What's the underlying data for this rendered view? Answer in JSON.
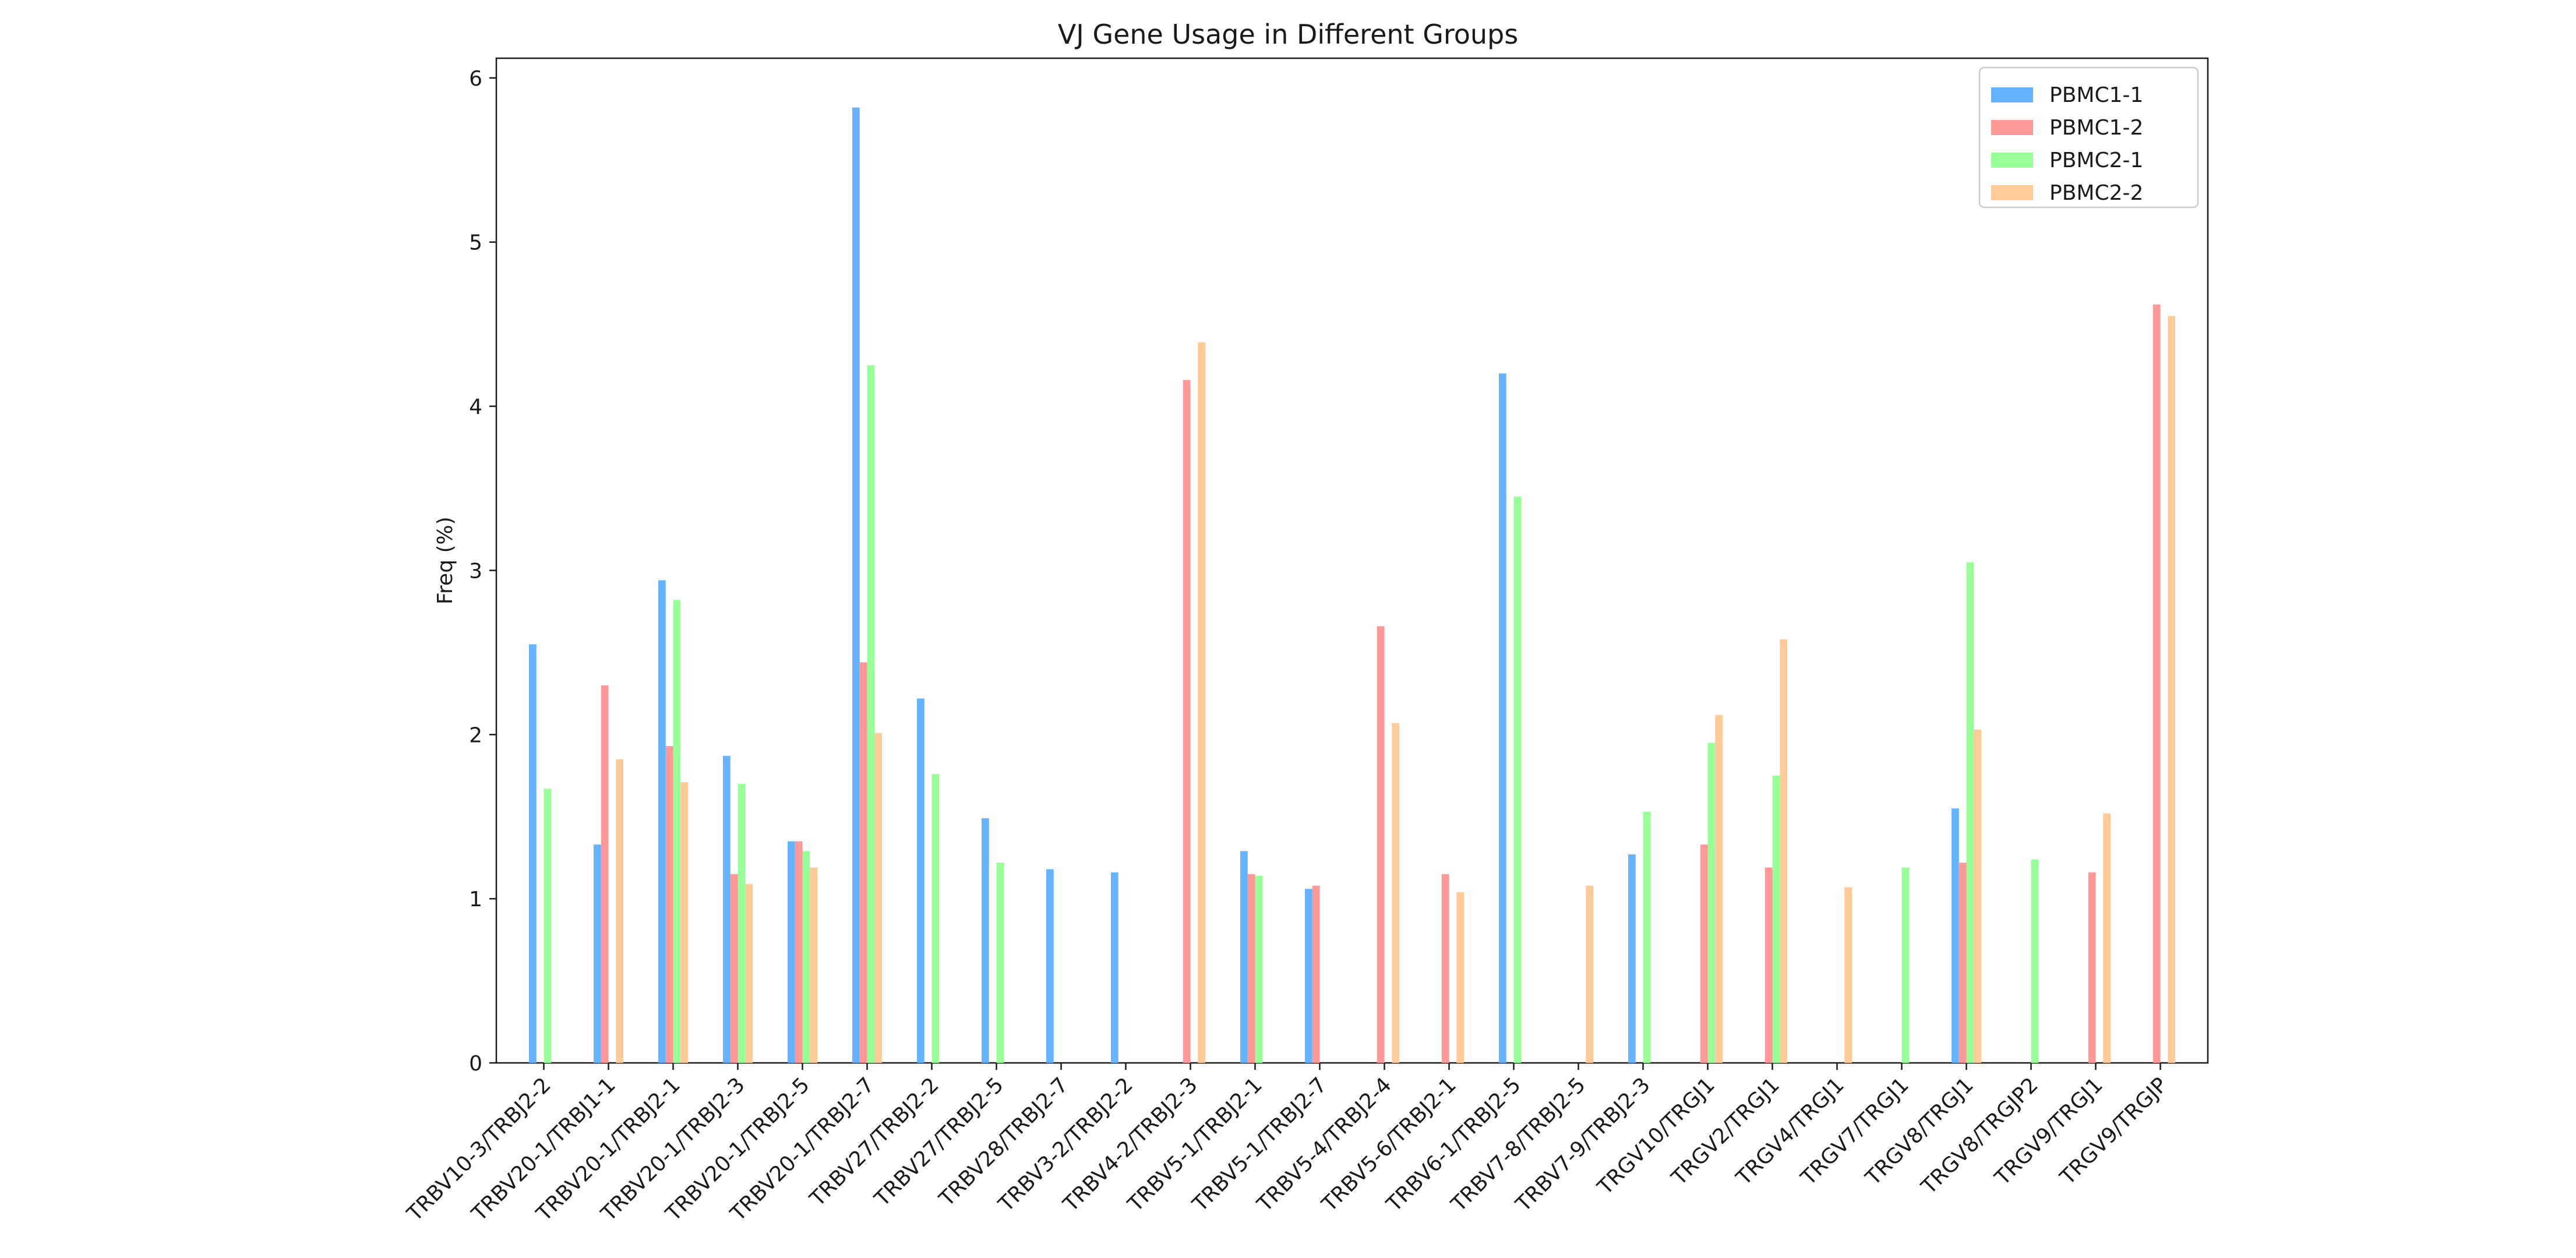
{
  "chart_data": {
    "type": "bar",
    "title": "VJ Gene Usage in Different Groups",
    "xlabel": "",
    "ylabel": "Freq (%)",
    "ylim": [
      0,
      6.12
    ],
    "yticks": [
      0,
      1,
      2,
      3,
      4,
      5,
      6
    ],
    "grid": false,
    "legend_position": "top-right",
    "categories": [
      "TRBV10-3/TRBJ2-2",
      "TRBV20-1/TRBJ1-1",
      "TRBV20-1/TRBJ2-1",
      "TRBV20-1/TRBJ2-3",
      "TRBV20-1/TRBJ2-5",
      "TRBV20-1/TRBJ2-7",
      "TRBV27/TRBJ2-2",
      "TRBV27/TRBJ2-5",
      "TRBV28/TRBJ2-7",
      "TRBV3-2/TRBJ2-2",
      "TRBV4-2/TRBJ2-3",
      "TRBV5-1/TRBJ2-1",
      "TRBV5-1/TRBJ2-7",
      "TRBV5-4/TRBJ2-4",
      "TRBV5-6/TRBJ2-1",
      "TRBV6-1/TRBJ2-5",
      "TRBV7-8/TRBJ2-5",
      "TRBV7-9/TRBJ2-3",
      "TRGV10/TRGJ1",
      "TRGV2/TRGJ1",
      "TRGV4/TRGJ1",
      "TRGV7/TRGJ1",
      "TRGV8/TRGJ1",
      "TRGV8/TRGJP2",
      "TRGV9/TRGJ1",
      "TRGV9/TRGJP"
    ],
    "series": [
      {
        "name": "PBMC1-1",
        "color": "#66b3ff",
        "values": [
          2.55,
          1.33,
          2.94,
          1.87,
          1.35,
          5.82,
          2.22,
          1.49,
          1.18,
          1.16,
          0,
          1.29,
          1.06,
          0,
          0,
          4.2,
          0,
          1.27,
          0,
          0,
          0,
          0,
          1.55,
          0,
          0,
          0
        ]
      },
      {
        "name": "PBMC1-2",
        "color": "#ff9999",
        "values": [
          0,
          2.3,
          1.93,
          1.15,
          1.35,
          2.44,
          0,
          0,
          0,
          0,
          4.16,
          1.15,
          1.08,
          2.66,
          1.15,
          0,
          0,
          0,
          1.33,
          1.19,
          0,
          0,
          1.22,
          0,
          1.16,
          4.62
        ]
      },
      {
        "name": "PBMC2-1",
        "color": "#99ff99",
        "values": [
          1.67,
          0,
          2.82,
          1.7,
          1.29,
          4.25,
          1.76,
          1.22,
          0,
          0,
          0,
          1.14,
          0,
          0,
          0,
          3.45,
          0,
          1.53,
          1.95,
          1.75,
          0,
          1.19,
          3.05,
          1.24,
          0,
          0
        ]
      },
      {
        "name": "PBMC2-2",
        "color": "#ffcc99",
        "values": [
          0,
          1.85,
          1.71,
          1.09,
          1.19,
          2.01,
          0,
          0,
          0,
          0,
          4.39,
          0,
          0,
          2.07,
          1.04,
          0,
          1.08,
          0,
          2.12,
          2.58,
          1.07,
          0,
          2.03,
          0,
          1.52,
          4.55
        ]
      }
    ]
  }
}
